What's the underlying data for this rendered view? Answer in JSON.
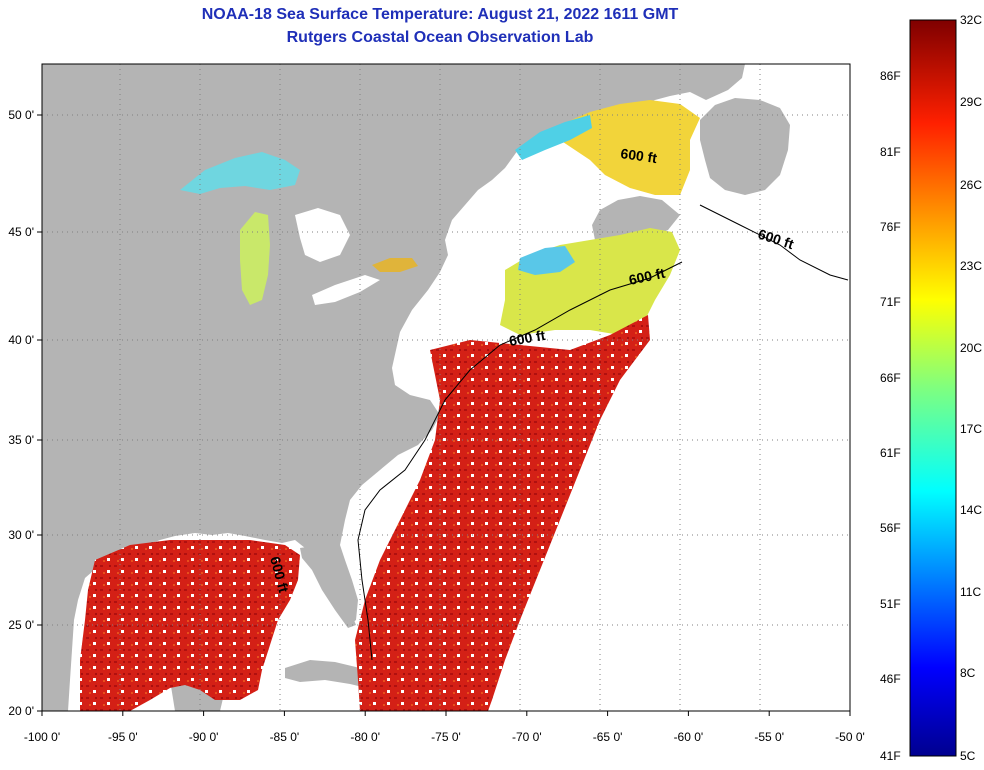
{
  "title": {
    "line1": "NOAA-18 Sea Surface Temperature:  August 21, 2022 1611 GMT",
    "line2": "Rutgers Coastal Ocean Observation Lab"
  },
  "map": {
    "lon_labels": [
      "-100 0'",
      "-95 0'",
      "-90 0'",
      "-85 0'",
      "-80 0'",
      "-75 0'",
      "-70 0'",
      "-65 0'",
      "-60 0'",
      "-55 0'",
      "-50 0'"
    ],
    "lat_labels": [
      "50 0'",
      "45 0'",
      "40 0'",
      "35 0'",
      "30 0'",
      "25 0'",
      "20 0'"
    ],
    "isobath_label": "600 ft",
    "colors": {
      "land": "#b4b4b4",
      "no_data": "#ffffff",
      "warm": "#d81e16",
      "cool": "#4fd0e6"
    }
  },
  "colorbar": {
    "celsius": [
      "32C",
      "29C",
      "26C",
      "23C",
      "20C",
      "17C",
      "14C",
      "11C",
      "8C",
      "5C"
    ],
    "fahrenheit": [
      "86F",
      "81F",
      "76F",
      "71F",
      "66F",
      "61F",
      "56F",
      "51F",
      "46F",
      "41F"
    ],
    "range_c": [
      5,
      32
    ]
  }
}
